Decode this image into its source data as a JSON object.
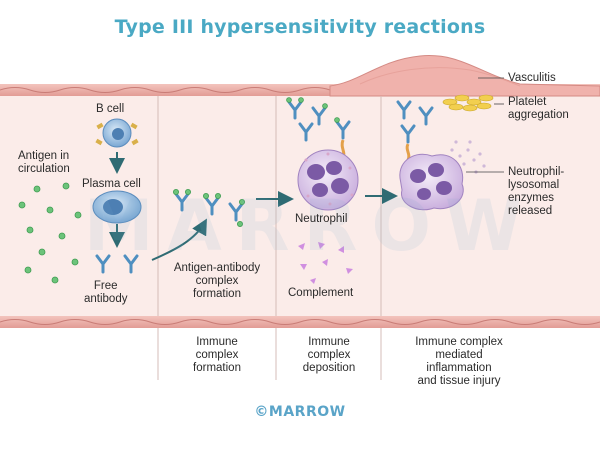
{
  "title": "Type III hypersensitivity reactions",
  "watermark": "MARROW",
  "footer": "©MARROW",
  "labels": {
    "b_cell": "B cell",
    "antigen_circulation_1": "Antigen in",
    "antigen_circulation_2": "circulation",
    "plasma_cell": "Plasma cell",
    "free_antibody_1": "Free",
    "free_antibody_2": "antibody",
    "complex_formation_1": "Antigen-antibody",
    "complex_formation_2": "complex",
    "complex_formation_3": "formation",
    "neutrophil": "Neutrophil",
    "complement": "Complement",
    "vasculitis": "Vasculitis",
    "platelet_1": "Platelet",
    "platelet_2": "aggregation",
    "enzymes_1": "Neutrophil-",
    "enzymes_2": "lysosomal",
    "enzymes_3": "enzymes",
    "enzymes_4": "released"
  },
  "stages": [
    {
      "line1": "Immune",
      "line2": "complex",
      "line3": "formation"
    },
    {
      "line1": "Immune",
      "line2": "complex",
      "line3": "deposition"
    },
    {
      "line1": "Immune complex",
      "line2": "mediated",
      "line3": "inflammation",
      "line4": "and tissue injury"
    }
  ],
  "colors": {
    "title": "#4aa9c4",
    "vessel_lumen": "#fbe9e6",
    "vessel_wall": "#e7a9a3",
    "antibody": "#4f8fc0",
    "antigen": "#5cbf6a",
    "neutrophil": "#b79ad0",
    "complement": "#c98ad6",
    "platelet": "#f2cf4f",
    "arrow": "#2f6b73"
  }
}
